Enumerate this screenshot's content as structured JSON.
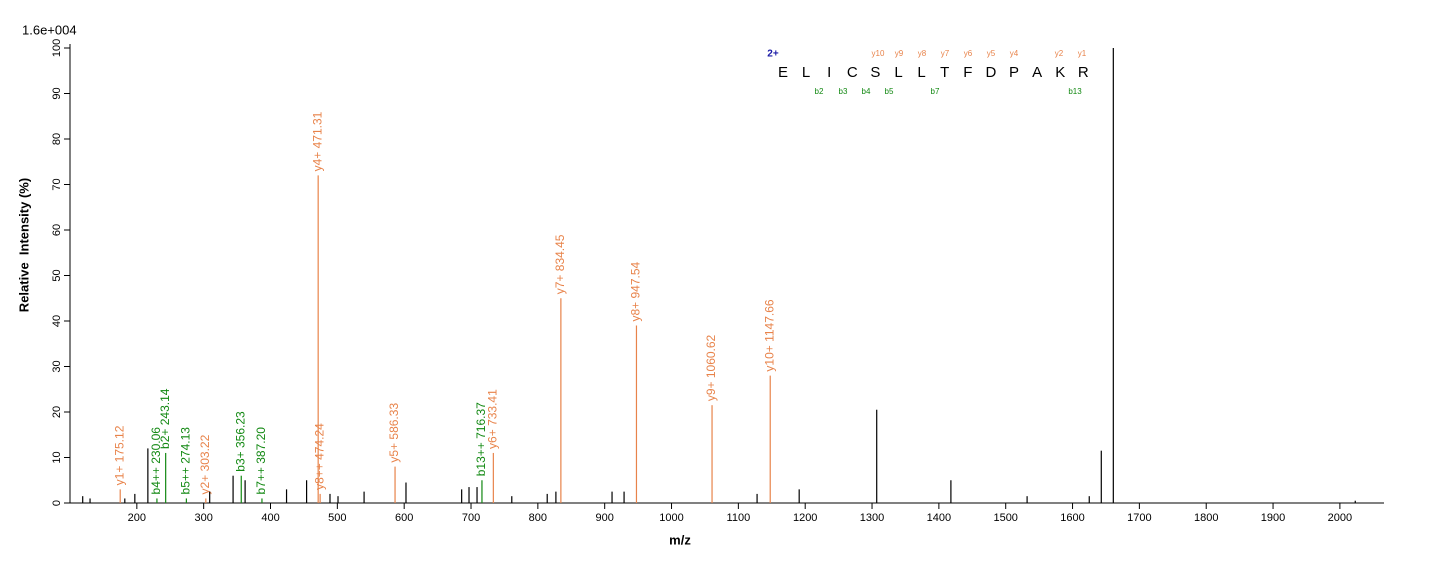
{
  "chart_data": {
    "type": "stem",
    "title": "1.6e+004",
    "x_label": "m/z",
    "y_label": "Relative  Intensity (%)",
    "xlim": [
      100,
      2066
    ],
    "ylim": [
      0,
      100
    ],
    "xticks": [
      200,
      300,
      400,
      500,
      600,
      700,
      800,
      900,
      1000,
      1100,
      1200,
      1300,
      1400,
      1500,
      1600,
      1700,
      1800,
      1900,
      2000
    ],
    "yticks": [
      0,
      10,
      20,
      30,
      40,
      50,
      60,
      70,
      80,
      90,
      100
    ],
    "series": [
      {
        "color": "#e8834a",
        "x": [
          175.12,
          303.22,
          471.31,
          474.24,
          586.33,
          733.41,
          834.45,
          947.54,
          1060.62,
          1147.66
        ],
        "values": [
          3,
          1,
          72,
          2,
          8,
          11,
          45,
          39,
          21.5,
          28
        ],
        "labels": [
          "y1+ 175.12",
          "y2+ 303.22",
          "y4+ 471.31",
          "y8++ 474.24",
          "y5+ 586.33",
          "y6+ 733.41",
          "y7+ 834.45",
          "y8+ 947.54",
          "y9+ 1060.62",
          "y10+ 1147.66"
        ]
      },
      {
        "color": "#118811",
        "x": [
          230.06,
          243.14,
          274.13,
          356.23,
          387.2,
          716.37
        ],
        "values": [
          1,
          11,
          1,
          6,
          1,
          5
        ],
        "labels": [
          "b4++ 230.06",
          "b2+ 243.14",
          "b5++ 274.13",
          "b3+ 356.23",
          "b7++ 387.20",
          "b13++ 716.37"
        ]
      },
      {
        "color": "#000000",
        "x": [
          119,
          130,
          182,
          197,
          216.5,
          309,
          344,
          362,
          424,
          454,
          489,
          501,
          540,
          602.7,
          686,
          697,
          709,
          761,
          814,
          827,
          911,
          929,
          1128,
          1191,
          1307,
          1418,
          1532,
          1625,
          1643,
          1661,
          2023
        ],
        "values": [
          1.5,
          1,
          1,
          2,
          12,
          2.5,
          6,
          5,
          3,
          5,
          2,
          1.5,
          2.5,
          4.5,
          3,
          3.5,
          3.5,
          1.5,
          2,
          2.5,
          2.5,
          2.5,
          2,
          3,
          20.5,
          5,
          1.5,
          1.5,
          11.5,
          100,
          0.5
        ]
      }
    ],
    "sequence": {
      "charge": "2+",
      "residues": [
        "E",
        "L",
        "I",
        "C",
        "S",
        "L",
        "L",
        "T",
        "F",
        "D",
        "P",
        "A",
        "K",
        "R"
      ],
      "y_ions": [
        "y10",
        "y9",
        "y8",
        "y7",
        "y6",
        "y5",
        "y4",
        "y2",
        "y1"
      ],
      "b_ions": [
        "b2",
        "b3",
        "b4",
        "b5",
        "b7",
        "b13"
      ]
    }
  }
}
